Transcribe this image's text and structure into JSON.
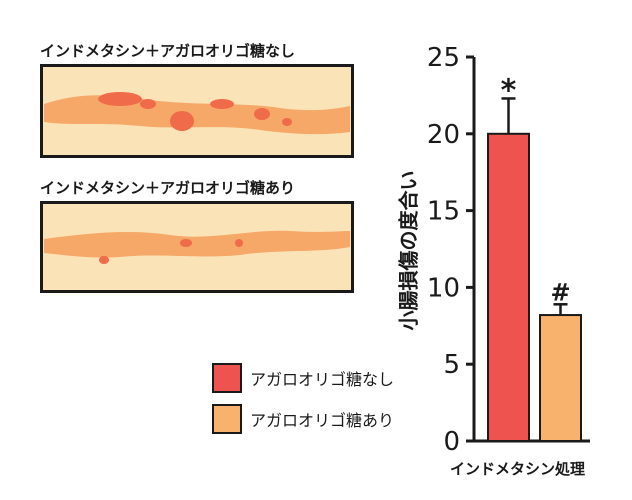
{
  "panels": {
    "top_label": "インドメタシン＋アガロオリゴ糖なし",
    "bottom_label": "インドメタシン＋アガロオリゴ糖あり"
  },
  "legend": [
    {
      "label": "アガロオリゴ糖なし",
      "color": "#ef5350"
    },
    {
      "label": "アガロオリゴ糖あり",
      "color": "#f9b26e"
    }
  ],
  "chart_data": {
    "type": "bar",
    "categories": [
      "アガロオリゴ糖なし",
      "アガロオリゴ糖あり"
    ],
    "values": [
      20,
      8.2
    ],
    "errors": [
      2.3,
      0.7
    ],
    "colors": [
      "#ef5350",
      "#f9b26e"
    ],
    "annotations": [
      "*",
      "#"
    ],
    "xlabel": "インドメタシン処理",
    "ylabel": "小腸損傷の度合い",
    "ylim": [
      0,
      25
    ],
    "yticks": [
      0,
      5,
      10,
      15,
      20,
      25
    ],
    "grid": false
  }
}
